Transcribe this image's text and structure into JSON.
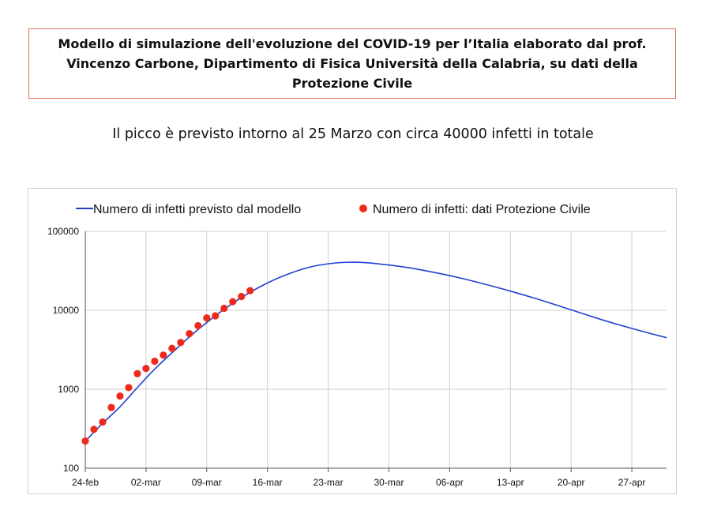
{
  "header": {
    "title": "Modello di simulazione dell'evoluzione del COVID-19 per l’Italia elaborato dal prof. Vincenzo Carbone, Dipartimento di Fisica Università della Calabria, su dati della Protezione Civile",
    "subtitle": "Il picco è previsto intorno al 25 Marzo con circa 40000 infetti in totale"
  },
  "colors": {
    "model_line": "#2040d0",
    "data_points": "#ee2a1c",
    "title_border": "#e0735a",
    "grid": "#cfcfcf"
  },
  "chart_data": {
    "type": "line",
    "y_scale": "log",
    "ylim": [
      100,
      100000
    ],
    "y_ticks": [
      100,
      1000,
      10000,
      100000
    ],
    "y_tick_labels": [
      "100",
      "1000",
      "10000",
      "100000"
    ],
    "x_ticks": [
      "24-feb",
      "02-mar",
      "09-mar",
      "16-mar",
      "23-mar",
      "30-mar",
      "06-apr",
      "13-apr",
      "20-apr",
      "27-apr"
    ],
    "xlim": [
      "2020-02-24",
      "2020-05-01"
    ],
    "grid": true,
    "legend_position": "top",
    "series": [
      {
        "name": "Numero di infetti previsto dal modello",
        "style": "line",
        "x": [
          "2020-02-24",
          "2020-02-26",
          "2020-02-28",
          "2020-03-01",
          "2020-03-03",
          "2020-03-05",
          "2020-03-07",
          "2020-03-09",
          "2020-03-11",
          "2020-03-13",
          "2020-03-15",
          "2020-03-17",
          "2020-03-19",
          "2020-03-21",
          "2020-03-23",
          "2020-03-25",
          "2020-03-27",
          "2020-03-29",
          "2020-04-01",
          "2020-04-04",
          "2020-04-07",
          "2020-04-10",
          "2020-04-13",
          "2020-04-16",
          "2020-04-19",
          "2020-04-22",
          "2020-04-25",
          "2020-04-28",
          "2020-05-01"
        ],
        "y": [
          220,
          370,
          600,
          1050,
          1800,
          2900,
          4600,
          7000,
          10300,
          14500,
          19500,
          25000,
          30500,
          35500,
          38800,
          40500,
          40300,
          38500,
          35000,
          30500,
          26000,
          21500,
          17500,
          14000,
          11000,
          8600,
          6800,
          5500,
          4500
        ]
      },
      {
        "name": "Numero di infetti: dati Protezione Civile",
        "style": "scatter",
        "x": [
          "2020-02-24",
          "2020-02-25",
          "2020-02-26",
          "2020-02-27",
          "2020-02-28",
          "2020-02-29",
          "2020-03-01",
          "2020-03-02",
          "2020-03-03",
          "2020-03-04",
          "2020-03-05",
          "2020-03-06",
          "2020-03-07",
          "2020-03-08",
          "2020-03-09",
          "2020-03-10",
          "2020-03-11",
          "2020-03-12",
          "2020-03-13",
          "2020-03-14"
        ],
        "y": [
          221,
          311,
          385,
          588,
          821,
          1049,
          1577,
          1835,
          2263,
          2706,
          3296,
          3916,
          5061,
          6387,
          7985,
          8514,
          10590,
          12839,
          14955,
          17750
        ]
      }
    ]
  }
}
